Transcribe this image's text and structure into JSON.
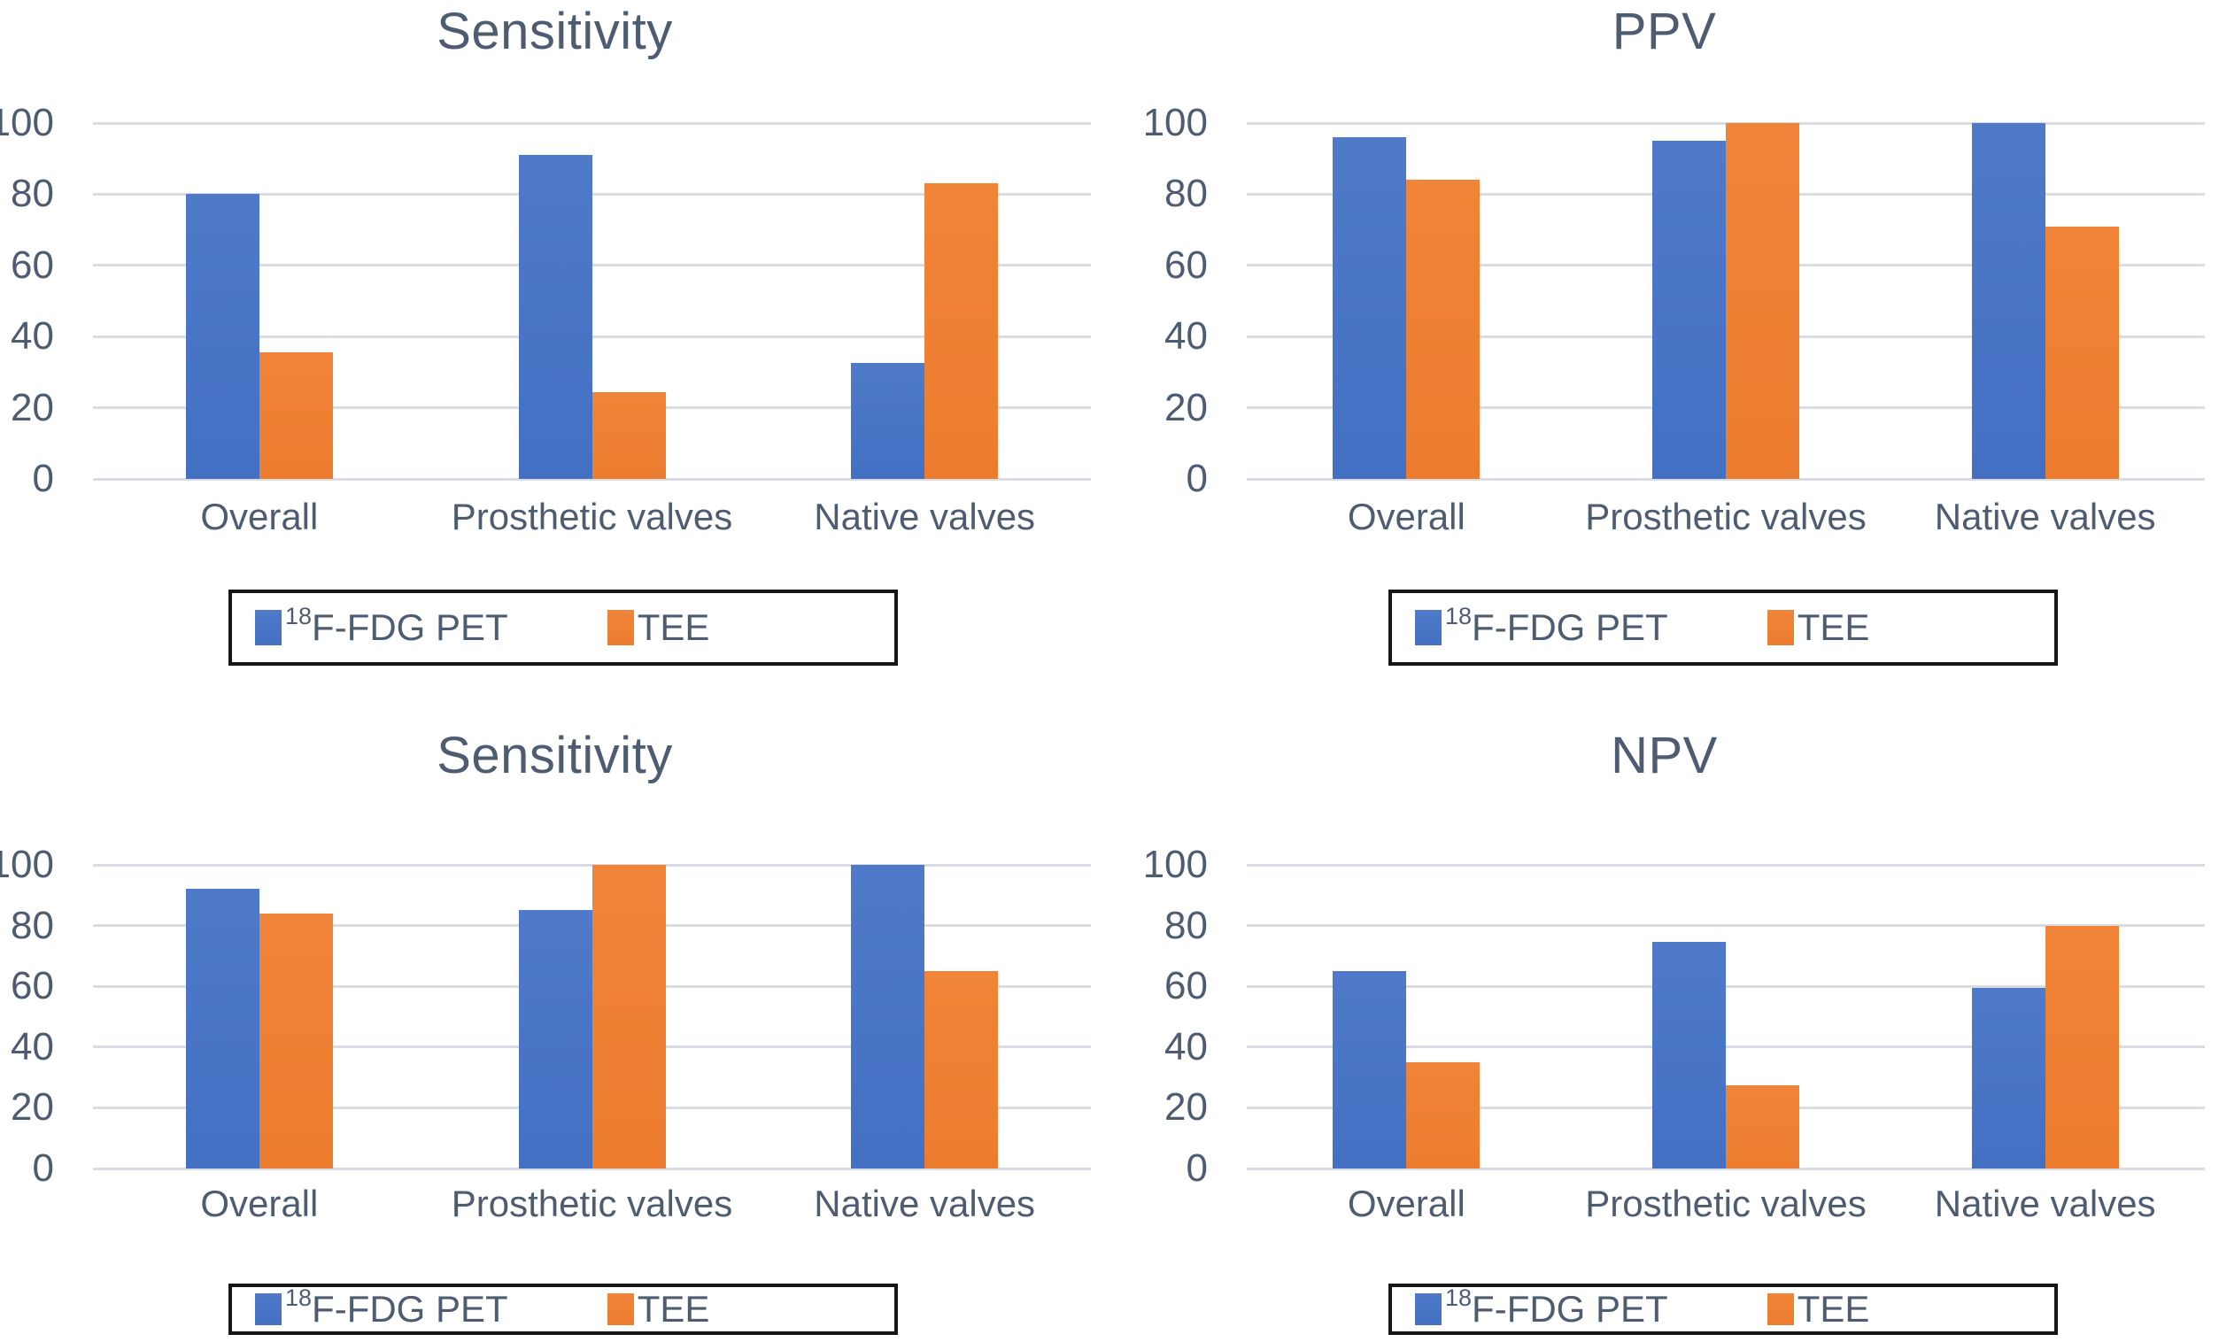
{
  "figure": {
    "background": "#ffffff",
    "layout": "2x2-grid-of-bar-charts"
  },
  "colors": {
    "pet_bar_top": "#4f7ac9",
    "pet_bar_bottom": "#4470c4",
    "tee_bar_top": "#f08438",
    "tee_bar_bottom": "#ed7c2e",
    "text": "#4e5c72",
    "gridline": "#d9dce3",
    "legend_border": "#161616",
    "background": "#ffffff"
  },
  "legend": {
    "pet_sup": "18",
    "pet_text": "F-FDG PET",
    "tee_text": "TEE",
    "pet_swatch": "blue-square-icon",
    "tee_swatch": "orange-square-icon"
  },
  "chart_data": [
    {
      "type": "bar",
      "panel": "top-left",
      "title": "Sensitivity",
      "categories": [
        "Overall",
        "Prosthetic valves",
        "Native valves"
      ],
      "series": [
        {
          "name": "18F-FDG PET",
          "color_key": "pet",
          "values": [
            80,
            91,
            32.5
          ]
        },
        {
          "name": "TEE",
          "color_key": "tee",
          "values": [
            35.5,
            24.5,
            83
          ]
        }
      ],
      "xlabel": "",
      "ylabel": "",
      "ylim": [
        0,
        100
      ],
      "yticks": [
        0,
        20,
        40,
        60,
        80,
        100
      ],
      "grid": true,
      "legend_position": "bottom"
    },
    {
      "type": "bar",
      "panel": "top-right",
      "title": "PPV",
      "categories": [
        "Overall",
        "Prosthetic valves",
        "Native valves"
      ],
      "series": [
        {
          "name": "18F-FDG PET",
          "color_key": "pet",
          "values": [
            96,
            95,
            100
          ]
        },
        {
          "name": "TEE",
          "color_key": "tee",
          "values": [
            84,
            100,
            71
          ]
        }
      ],
      "xlabel": "",
      "ylabel": "",
      "ylim": [
        0,
        100
      ],
      "yticks": [
        0,
        20,
        40,
        60,
        80,
        100
      ],
      "grid": true,
      "legend_position": "bottom"
    },
    {
      "type": "bar",
      "panel": "bottom-left",
      "title": "Sensitivity",
      "categories": [
        "Overall",
        "Prosthetic valves",
        "Native valves"
      ],
      "series": [
        {
          "name": "18F-FDG PET",
          "color_key": "pet",
          "values": [
            92,
            85,
            100
          ]
        },
        {
          "name": "TEE",
          "color_key": "tee",
          "values": [
            84,
            100,
            65
          ]
        }
      ],
      "xlabel": "",
      "ylabel": "",
      "ylim": [
        0,
        100
      ],
      "yticks": [
        0,
        20,
        40,
        60,
        80,
        100
      ],
      "grid": true,
      "legend_position": "bottom"
    },
    {
      "type": "bar",
      "panel": "bottom-right",
      "title": "NPV",
      "categories": [
        "Overall",
        "Prosthetic valves",
        "Native valves"
      ],
      "series": [
        {
          "name": "18F-FDG PET",
          "color_key": "pet",
          "values": [
            65,
            74.5,
            59.5
          ]
        },
        {
          "name": "TEE",
          "color_key": "tee",
          "values": [
            35,
            27.5,
            80
          ]
        }
      ],
      "xlabel": "",
      "ylabel": "",
      "ylim": [
        0,
        100
      ],
      "yticks": [
        0,
        20,
        40,
        60,
        80,
        100
      ],
      "grid": true,
      "legend_position": "bottom"
    }
  ]
}
